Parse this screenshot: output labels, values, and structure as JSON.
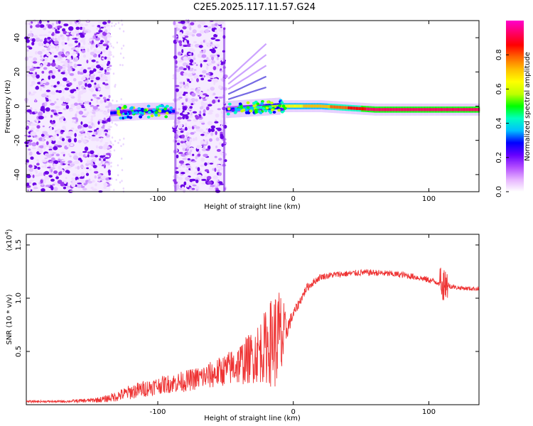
{
  "title": "C2E5.2025.117.11.57.G24",
  "chart_data": [
    {
      "type": "heatmap",
      "xlabel": "Height of straight line (km)",
      "ylabel": "Frequency (Hz)",
      "xlim": [
        -197,
        137
      ],
      "ylim": [
        -50,
        50
      ],
      "xticks": [
        -100,
        0,
        100
      ],
      "yticks": [
        -40,
        -20,
        0,
        20,
        40
      ],
      "colorbar": {
        "label": "Normalized spectral amplitude",
        "range": [
          0.0,
          1.0
        ],
        "ticks": [
          "0.0",
          "0.2",
          "0.4",
          "0.6",
          "0.8"
        ],
        "colors": [
          "#ffffff",
          "#e6b3ff",
          "#b34dff",
          "#6600ff",
          "#0000ff",
          "#00bfff",
          "#00ffbf",
          "#00ff00",
          "#bfff00",
          "#ffff00",
          "#ffbf00",
          "#ff6600",
          "#ff0000",
          "#ff0066",
          "#ff00cc"
        ]
      },
      "noise_bands_km": [
        [
          -197,
          -135
        ],
        [
          -88,
          -50
        ]
      ],
      "main_line": {
        "x_km": [
          -135,
          -110,
          -90,
          -50,
          -30,
          -10,
          0,
          20,
          40,
          60,
          80,
          100,
          120,
          137
        ],
        "freq_hz": [
          -4,
          -3,
          -3,
          -2,
          -1,
          0,
          0,
          0,
          -1,
          -2,
          -2,
          -2,
          -2,
          -2
        ],
        "amplitude": [
          0.3,
          0.3,
          0.3,
          0.3,
          0.4,
          0.6,
          0.65,
          0.7,
          0.8,
          0.9,
          0.92,
          0.93,
          0.93,
          0.92
        ]
      }
    },
    {
      "type": "line",
      "xlabel": "Height of straight line (km)",
      "ylabel": "SNR (10 * v/v)",
      "yscale_label": "(x10",
      "yscale_exponent": "4",
      "xlim": [
        -197,
        137
      ],
      "ylim": [
        0,
        1.6
      ],
      "xticks": [
        -100,
        0,
        100
      ],
      "yticks": [
        0.5,
        1.0,
        1.5
      ],
      "series": [
        {
          "name": "SNR",
          "color": "#ee3333",
          "x": [
            -197,
            -170,
            -150,
            -140,
            -130,
            -120,
            -110,
            -100,
            -90,
            -80,
            -70,
            -60,
            -50,
            -40,
            -30,
            -20,
            -15,
            -10,
            -8,
            -5,
            0,
            10,
            20,
            30,
            40,
            50,
            60,
            70,
            80,
            90,
            100,
            110,
            115,
            120,
            130,
            137
          ],
          "y": [
            0.03,
            0.03,
            0.04,
            0.05,
            0.08,
            0.12,
            0.15,
            0.18,
            0.2,
            0.22,
            0.25,
            0.28,
            0.33,
            0.38,
            0.45,
            0.55,
            0.6,
            0.62,
            0.6,
            0.7,
            0.85,
            1.1,
            1.2,
            1.22,
            1.23,
            1.24,
            1.24,
            1.23,
            1.22,
            1.2,
            1.17,
            1.14,
            1.12,
            1.1,
            1.09,
            1.09
          ],
          "noise_amp": [
            0.01,
            0.01,
            0.02,
            0.03,
            0.05,
            0.07,
            0.08,
            0.08,
            0.09,
            0.1,
            0.11,
            0.13,
            0.15,
            0.2,
            0.25,
            0.35,
            0.45,
            0.5,
            0.45,
            0.1,
            0.05,
            0.04,
            0.03,
            0.03,
            0.03,
            0.03,
            0.03,
            0.03,
            0.03,
            0.03,
            0.03,
            0.03,
            0.03,
            0.02,
            0.02,
            0.02
          ]
        }
      ]
    }
  ]
}
